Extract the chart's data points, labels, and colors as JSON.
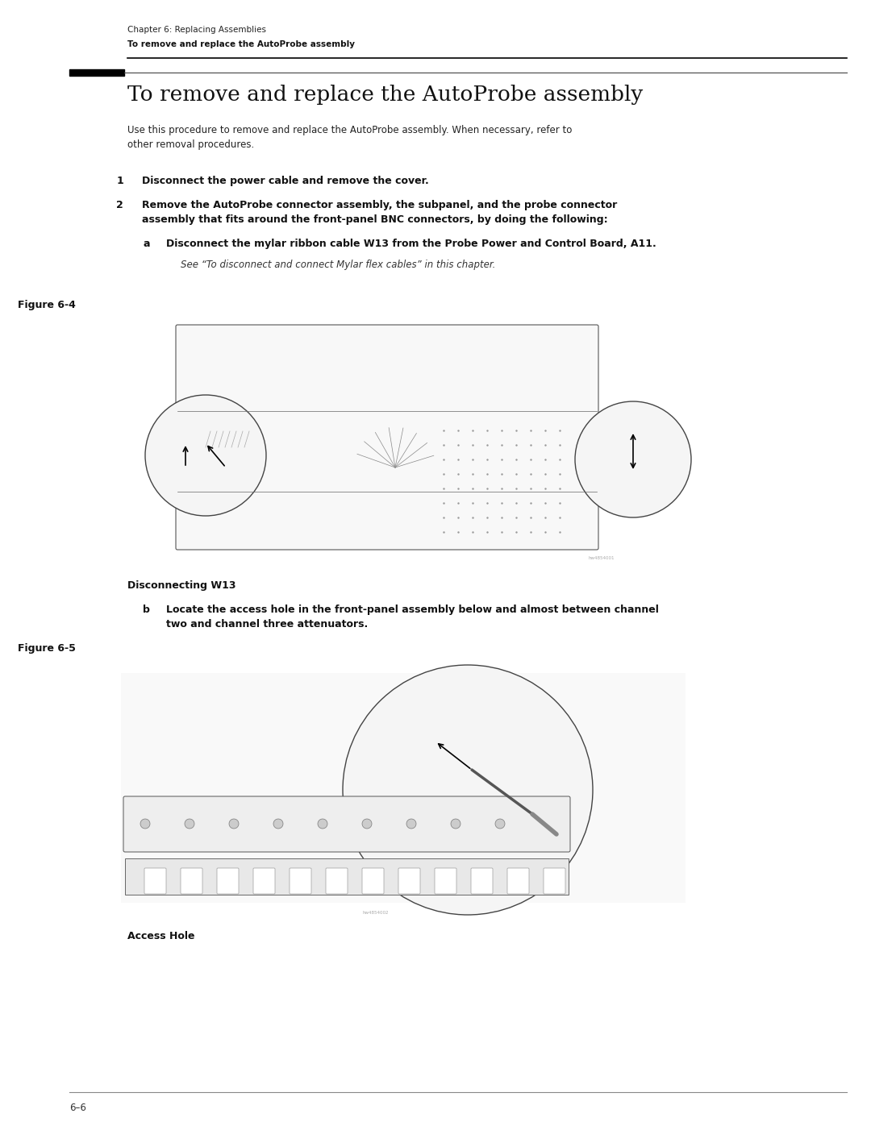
{
  "bg_color": "#ffffff",
  "page_width": 10.8,
  "page_height": 13.97,
  "header_chapter": "Chapter 6: Replacing Assemblies",
  "header_bold": "To remove and replace the AutoProbe assembly",
  "section_title": "To remove and replace the AutoProbe assembly",
  "intro_text": "Use this procedure to remove and replace the AutoProbe assembly. When necessary, refer to\nother removal procedures.",
  "step1_num": "1",
  "step1_text": "Disconnect the power cable and remove the cover.",
  "step2_num": "2",
  "step2_text": "Remove the AutoProbe connector assembly, the subpanel, and the probe connector\nassembly that fits around the front-panel BNC connectors, by doing the following:",
  "step2a_letter": "a",
  "step2a_text": "Disconnect the mylar ribbon cable W13 from the Probe Power and Control Board, A11.",
  "step2a_see": "See “To disconnect and connect Mylar flex cables” in this chapter.",
  "figure4_label": "Figure 6-4",
  "figure4_caption": "Disconnecting W13",
  "step2b_letter": "b",
  "step2b_text": "Locate the access hole in the front-panel assembly below and almost between channel\ntwo and channel three attenuators.",
  "figure5_label": "Figure 6-5",
  "figure5_caption": "Access Hole",
  "footer_line_color": "#888888",
  "footer_text": "6–6",
  "header_line_color": "#000000",
  "black_bar_color": "#000000",
  "rule_color": "#888888"
}
